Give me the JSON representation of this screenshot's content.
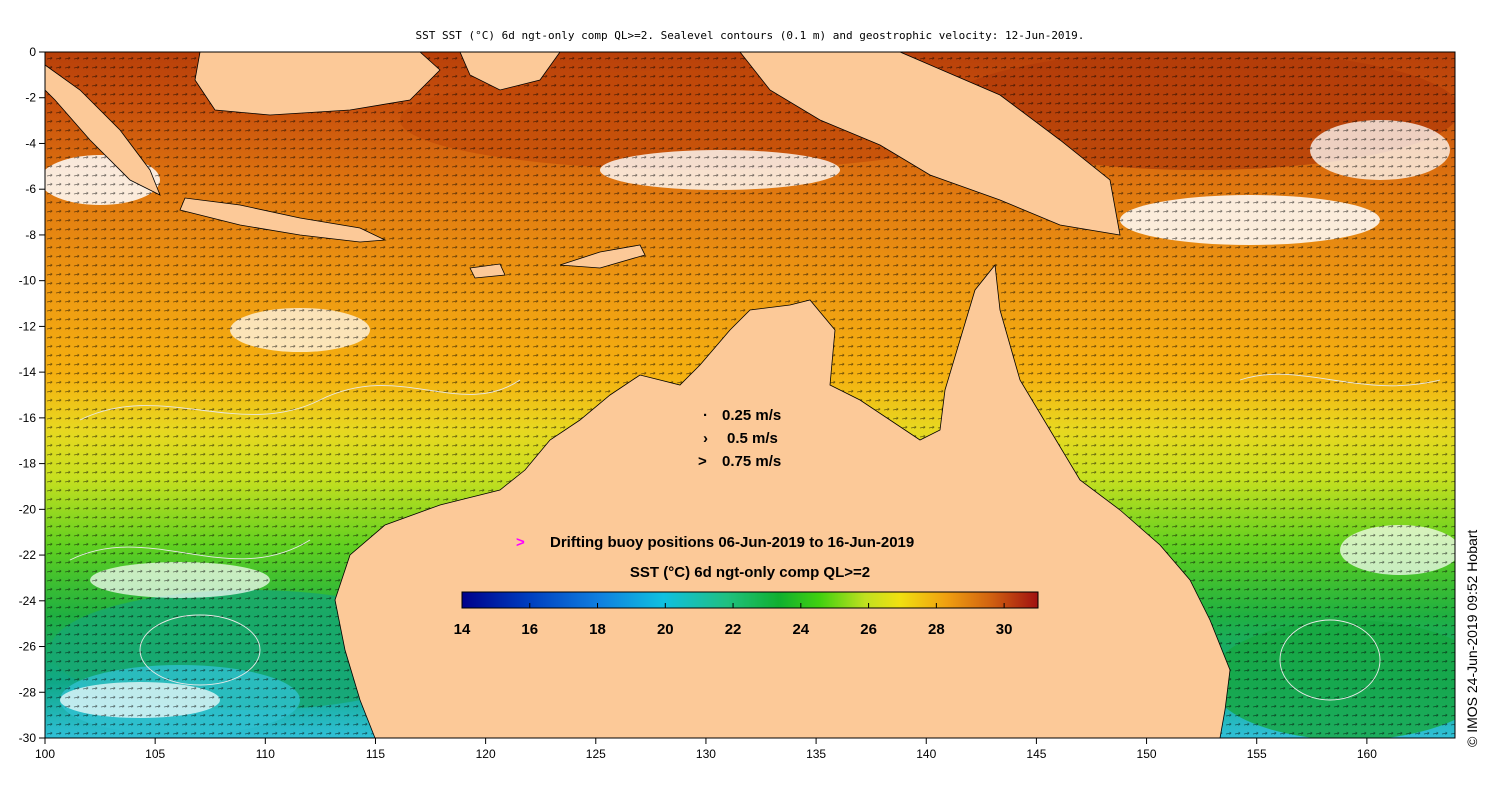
{
  "title": "SST SST (°C) 6d ngt-only comp QL>=2. Sealevel contours (0.1 m) and geostrophic velocity: 12-Jun-2019.",
  "axes": {
    "x_ticks": [
      "100",
      "105",
      "110",
      "115",
      "120",
      "125",
      "130",
      "135",
      "140",
      "145",
      "150",
      "155",
      "160"
    ],
    "y_ticks": [
      "0",
      "-2",
      "-4",
      "-6",
      "-8",
      "-10",
      "-12",
      "-14",
      "-16",
      "-18",
      "-20",
      "-22",
      "-24",
      "-26",
      "-28",
      "-30"
    ],
    "lon_range": [
      100,
      164
    ],
    "lat_range": [
      -30,
      0
    ]
  },
  "velocity_legend": [
    {
      "label": "0.25 m/s",
      "arrow": "·"
    },
    {
      "label": "0.5 m/s",
      "arrow": "›"
    },
    {
      "label": "0.75 m/s",
      "arrow": ">"
    }
  ],
  "buoy_legend": {
    "marker": ">",
    "label": "Drifting buoy positions 06-Jun-2019 to 16-Jun-2019",
    "marker_color": "#ff00ff"
  },
  "colorbar": {
    "title": "SST (°C) 6d ngt-only comp QL>=2",
    "min": 14,
    "max": 31,
    "ticks": [
      "14",
      "16",
      "18",
      "20",
      "22",
      "24",
      "26",
      "28",
      "30"
    ]
  },
  "credit": "© IMOS 24-Jun-2019 09:52 Hobart",
  "colors": {
    "land": "#fcc998",
    "cloud": "#ffffff",
    "warm": "#c24a0a",
    "mid": "#f0a010",
    "cool": "#22bb33",
    "cold": "#22bbdd"
  }
}
